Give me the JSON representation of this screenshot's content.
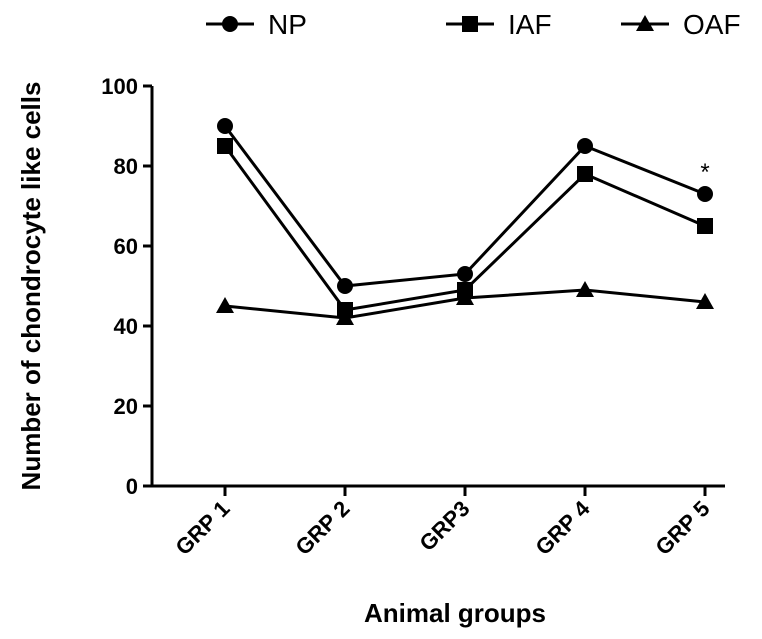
{
  "chart_data": {
    "type": "line",
    "title": "",
    "xlabel": "Animal groups",
    "ylabel": "Number of chondrocyte like cells",
    "categories": [
      "GRP 1",
      "GRP 2",
      "GRP3",
      "GRP 4",
      "GRP 5"
    ],
    "ylim": [
      0,
      100
    ],
    "yticks": [
      0,
      20,
      40,
      60,
      80,
      100
    ],
    "grid": false,
    "legend": "top",
    "series": [
      {
        "name": "NP",
        "marker": "circle",
        "values": [
          90,
          50,
          53,
          85,
          73
        ]
      },
      {
        "name": "IAF",
        "marker": "square",
        "values": [
          85,
          44,
          49,
          78,
          65
        ]
      },
      {
        "name": "OAF",
        "marker": "triangle",
        "values": [
          45,
          42,
          47,
          49,
          46
        ]
      }
    ],
    "annotations": [
      {
        "text": "*",
        "category": "GRP 5",
        "y": 80
      }
    ],
    "colors": {
      "line": "#000000",
      "marker": "#000000"
    }
  }
}
